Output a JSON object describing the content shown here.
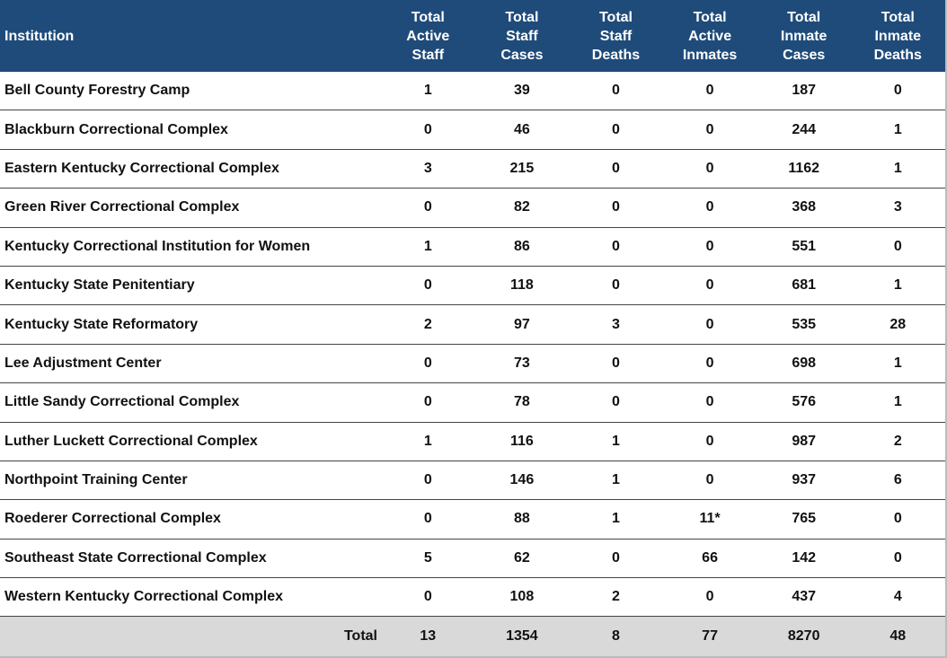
{
  "table": {
    "header": [
      [
        "Institution"
      ],
      [
        "Total",
        "Active",
        "Staff"
      ],
      [
        "Total",
        "Staff",
        "Cases"
      ],
      [
        "Total",
        "Staff",
        "Deaths"
      ],
      [
        "Total",
        "Active",
        "Inmates"
      ],
      [
        "Total",
        "Inmate",
        "Cases"
      ],
      [
        "Total",
        "Inmate",
        "Deaths"
      ]
    ],
    "rows": [
      [
        "Bell County Forestry Camp",
        1,
        39,
        0,
        0,
        187,
        0
      ],
      [
        "Blackburn Correctional Complex",
        0,
        46,
        0,
        0,
        244,
        1
      ],
      [
        "Eastern Kentucky Correctional Complex",
        3,
        215,
        0,
        0,
        1162,
        1
      ],
      [
        "Green River Correctional Complex",
        0,
        82,
        0,
        0,
        368,
        3
      ],
      [
        "Kentucky Correctional Institution for Women",
        1,
        86,
        0,
        0,
        551,
        0
      ],
      [
        "Kentucky State Penitentiary",
        0,
        118,
        0,
        0,
        681,
        1
      ],
      [
        "Kentucky State Reformatory",
        2,
        97,
        3,
        0,
        535,
        28
      ],
      [
        "Lee Adjustment Center",
        0,
        73,
        0,
        0,
        698,
        1
      ],
      [
        "Little Sandy Correctional Complex",
        0,
        78,
        0,
        0,
        576,
        1
      ],
      [
        "Luther Luckett Correctional Complex",
        1,
        116,
        1,
        0,
        987,
        2
      ],
      [
        "Northpoint Training Center",
        0,
        146,
        1,
        0,
        937,
        6
      ],
      [
        "Roederer Correctional Complex",
        0,
        88,
        1,
        "11*",
        765,
        0
      ],
      [
        "Southeast State Correctional Complex",
        5,
        62,
        0,
        66,
        142,
        0
      ],
      [
        "Western Kentucky Correctional Complex",
        0,
        108,
        2,
        0,
        437,
        4
      ]
    ],
    "total": [
      "Total",
      13,
      1354,
      8,
      77,
      8270,
      48
    ]
  }
}
